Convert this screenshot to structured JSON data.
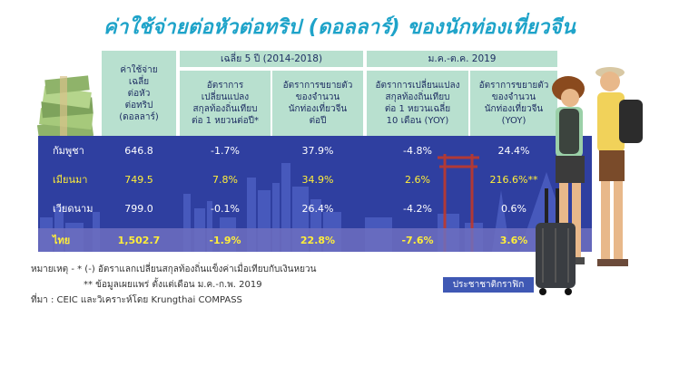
{
  "title": "ค่าใช้จ่ายต่อหัวต่อทริป (ดอลลาร์) ของนักท่องเที่ยวจีน",
  "headers": {
    "group_avg": "เฉลี่ย 5 ปี (2014-2018)",
    "group_ytd": "ม.ค.-ต.ค. 2019",
    "col_spend": "ค่าใช้จ่าย\nเฉลี่ย\nต่อหัว\nต่อทริป\n(ดอลลาร์)",
    "col_fx_avg": "อัตราการ\nเปลี่ยนแปลง\nสกุลท้องถิ่นเทียบ\nต่อ 1 หยวนต่อปี*",
    "col_growth_avg": "อัตราการขยายตัว\nของจำนวน\nนักท่องเที่ยวจีน\nต่อปี",
    "col_fx_ytd": "อัตราการเปลี่ยนแปลง\nสกุลท้องถิ่นเทียบ\nต่อ 1 หยวนเฉลี่ย\n10 เดือน (YOY)",
    "col_growth_ytd": "อัตราการขยายตัว\nของจำนวน\nนักท่องเที่ยวจีน\n(YOY)"
  },
  "rows": [
    {
      "country": "กัมพูชา",
      "spend": "646.8",
      "fx_avg": "-1.7%",
      "growth_avg": "37.9%",
      "fx_ytd": "-4.8%",
      "growth_ytd": "24.4%"
    },
    {
      "country": "เมียนมา",
      "spend": "749.5",
      "fx_avg": "7.8%",
      "growth_avg": "34.9%",
      "fx_ytd": "2.6%",
      "growth_ytd": "216.6%**"
    },
    {
      "country": "เวียดนาม",
      "spend": "799.0",
      "fx_avg": "-0.1%",
      "growth_avg": "26.4%",
      "fx_ytd": "-4.2%",
      "growth_ytd": "0.6%"
    },
    {
      "country": "ไทย",
      "spend": "1,502.7",
      "fx_avg": "-1.9%",
      "growth_avg": "22.8%",
      "fx_ytd": "-7.6%",
      "growth_ytd": "3.6%"
    }
  ],
  "notes": {
    "line1": "หมายเหตุ - * (-) อัตราแลกเปลี่ยนสกุลท้องถิ่นแข็งค่าเมื่อเทียบกับเงินหยวน",
    "line2": "** ข้อมูลเผยแพร่ ตั้งแต่เดือน ม.ค.-ก.พ. 2019",
    "line3": "ที่มา : CEIC และวิเคราะห์โดย Krungthai COMPASS"
  },
  "logo": "ประชาชาติกราฟิก",
  "colors": {
    "title": "#1ea3c9",
    "band": "#2f3fa0",
    "header": "#b8e0cf",
    "highlight": "#ffee3a"
  }
}
